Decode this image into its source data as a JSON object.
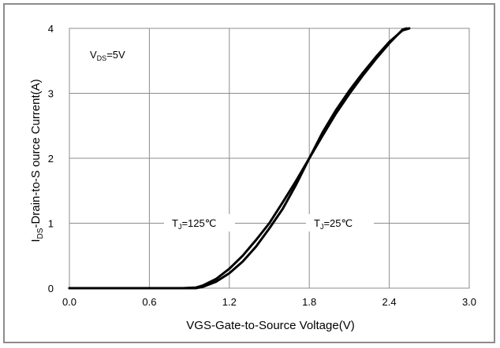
{
  "chart_data": {
    "type": "line",
    "xlabel": "VGS-Gate-to-Source  Voltage(V)",
    "ylabel": "I",
    "ylabel_sub": "DS",
    "ylabel_rest": "-Drain-to-S ource Current(A)",
    "xlim": [
      0,
      3.0
    ],
    "ylim": [
      0,
      4
    ],
    "xticks": [
      "0.0",
      "0.6",
      "1.2",
      "1.8",
      "2.4",
      "3.0"
    ],
    "yticks": [
      "0",
      "1",
      "2",
      "3",
      "4"
    ],
    "grid": true,
    "line_color": "#000000",
    "annotations": {
      "vds": {
        "main": "V",
        "sub": "DS",
        "rest": "=5V"
      },
      "t125": {
        "main": "T",
        "sub": "J",
        "rest": "=125℃"
      },
      "t25": {
        "main": "T",
        "sub": "J",
        "rest": "=25℃"
      }
    },
    "series": [
      {
        "x": [
          0.0,
          0.6,
          0.85,
          0.95,
          1.0,
          1.1,
          1.2,
          1.3,
          1.4,
          1.5,
          1.6,
          1.7,
          1.8,
          1.9,
          2.0,
          2.1,
          2.2,
          2.3,
          2.4,
          2.5,
          2.53
        ],
        "y": [
          0.0,
          0.0,
          0.0,
          0.01,
          0.04,
          0.14,
          0.3,
          0.5,
          0.74,
          1.0,
          1.32,
          1.65,
          2.0,
          2.35,
          2.69,
          2.99,
          3.27,
          3.53,
          3.77,
          3.98,
          4.0
        ]
      },
      {
        "x": [
          0.0,
          0.6,
          0.9,
          0.95,
          1.0,
          1.1,
          1.2,
          1.3,
          1.4,
          1.5,
          1.6,
          1.7,
          1.8,
          1.9,
          2.0,
          2.1,
          2.2,
          2.3,
          2.4,
          2.5,
          2.55
        ],
        "y": [
          0.0,
          0.0,
          0.0,
          0.0,
          0.02,
          0.1,
          0.23,
          0.41,
          0.64,
          0.92,
          1.22,
          1.59,
          2.0,
          2.4,
          2.74,
          3.04,
          3.31,
          3.56,
          3.79,
          3.97,
          4.0
        ]
      }
    ]
  }
}
